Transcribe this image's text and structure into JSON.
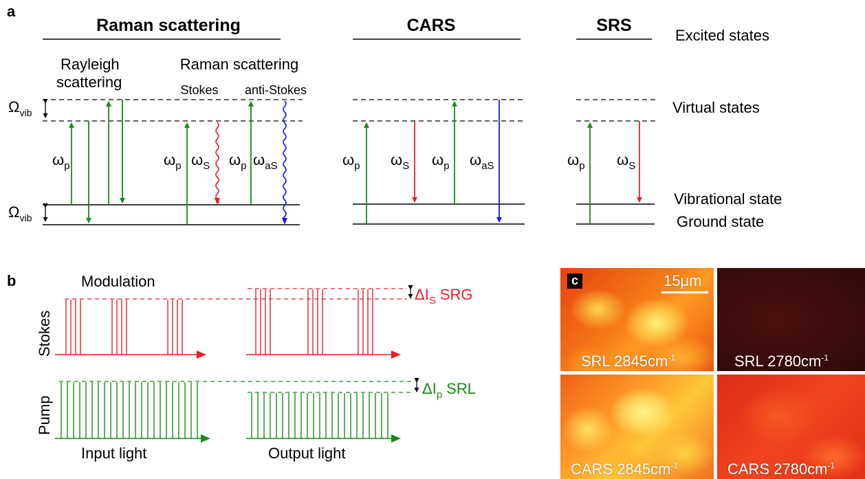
{
  "panel_a": {
    "letter": "a",
    "sections": {
      "raman": "Raman scattering",
      "cars": "CARS",
      "srs": "SRS"
    },
    "states": {
      "excited": "Excited states",
      "virtual": "Virtual states",
      "vibrational": "Vibrational state",
      "ground": "Ground state"
    },
    "omega_vib": {
      "base": "Ω",
      "sub": "vib"
    },
    "rayleigh": [
      "Rayleigh",
      "scattering"
    ],
    "raman_sub": "Raman scattering",
    "stokes": "Stokes",
    "anti_stokes": "anti-Stokes",
    "w_base": "ω",
    "sub_p": "p",
    "sub_s": "S",
    "sub_as": "aS"
  },
  "panel_b": {
    "letter": "b",
    "modulation": "Modulation",
    "stokes_axis": "Stokes",
    "pump_axis": "Pump",
    "input": "Input light",
    "output": "Output light",
    "delta_s": {
      "base": "ΔI",
      "sub": "S",
      "label": "SRG"
    },
    "delta_p": {
      "base": "ΔI",
      "sub": "p",
      "label": "SRL"
    }
  },
  "panel_c": {
    "letter": "c",
    "scale_bar": "15μm",
    "images": [
      {
        "label": "SRL 2845cm",
        "sup": "-1"
      },
      {
        "label": "SRL 2780cm",
        "sup": "-1"
      },
      {
        "label": "CARS 2845cm",
        "sup": "-1"
      },
      {
        "label": "CARS 2780cm",
        "sup": "-1"
      }
    ]
  },
  "colors": {
    "green": "#1a8a1a",
    "red": "#e8202a",
    "blue": "#1a1aee",
    "black": "#000000"
  }
}
